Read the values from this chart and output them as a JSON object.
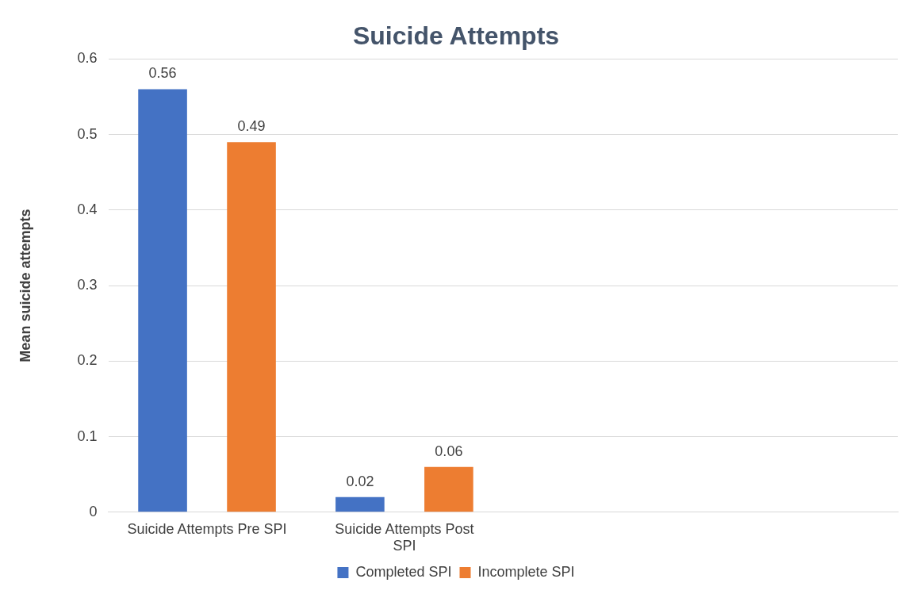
{
  "chart_data": {
    "type": "bar",
    "title": "Suicide Attempts",
    "ylabel": "Mean suicide attempts",
    "categories": [
      "Suicide Attempts Pre SPI",
      "Suicide Attempts Post SPI",
      null,
      null
    ],
    "series": [
      {
        "name": "Completed SPI",
        "color": "#4472c4",
        "values": [
          0.56,
          0.02,
          null,
          null
        ]
      },
      {
        "name": "Incomplete SPI",
        "color": "#ed7d31",
        "values": [
          0.49,
          0.06,
          null,
          null
        ]
      }
    ],
    "ylim": [
      0,
      0.6
    ],
    "yticks": [
      0,
      0.1,
      0.2,
      0.3,
      0.4,
      0.5,
      0.6
    ],
    "grid": "y",
    "legend": "bottom",
    "data_labels": true
  }
}
